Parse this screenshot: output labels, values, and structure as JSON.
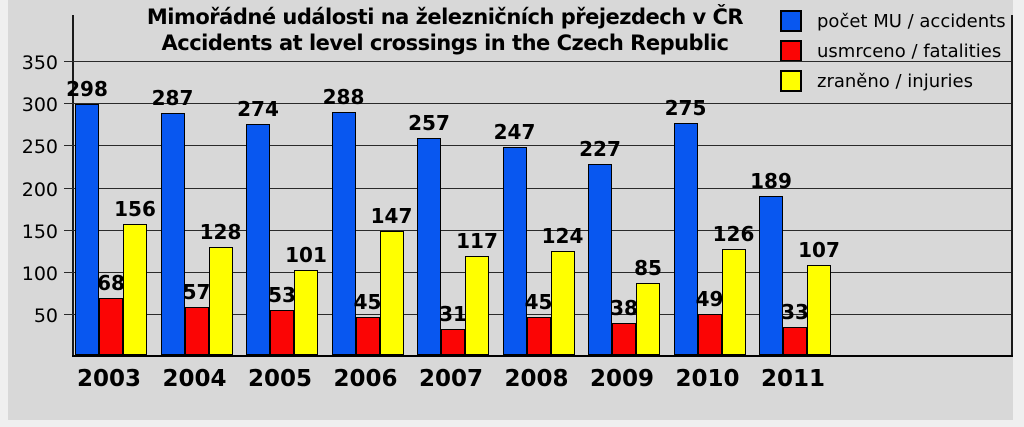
{
  "chart_data": {
    "type": "bar",
    "title": "Mimořádné události na železničních přejezdech v ČR",
    "subtitle": "Accidents at level crossings in the Czech Republic",
    "categories": [
      "2003",
      "2004",
      "2005",
      "2006",
      "2007",
      "2008",
      "2009",
      "2010",
      "2011"
    ],
    "series": [
      {
        "name": "počet MU / accidents",
        "color": "#0857f0",
        "values": [
          298,
          287,
          274,
          288,
          257,
          247,
          227,
          275,
          189
        ]
      },
      {
        "name": "usmrceno / fatalities",
        "color": "#fb0505",
        "values": [
          68,
          57,
          53,
          45,
          31,
          45,
          38,
          49,
          33
        ]
      },
      {
        "name": "zraněno / injuries",
        "color": "#ffff00",
        "values": [
          156,
          128,
          101,
          147,
          117,
          124,
          85,
          126,
          107
        ]
      }
    ],
    "ylim": [
      0,
      400
    ],
    "yticks": [
      50,
      100,
      150,
      200,
      250,
      300,
      350
    ],
    "grid": true,
    "legend_position": "top-right",
    "plot_background": "#d8d8d8",
    "gridline_color": "#2a2a2a"
  }
}
